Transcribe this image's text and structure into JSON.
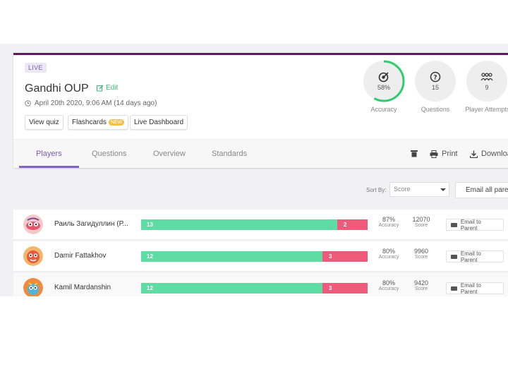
{
  "quiz": {
    "status": "LIVE",
    "title": "Gandhi OUP",
    "edit_label": "Edit",
    "date": "April 20th 2020, 9:06 AM (14 days ago)"
  },
  "actions": {
    "view_quiz": "View quiz",
    "flashcards": "Flashcards",
    "new_badge": "NEW",
    "live_dashboard": "Live Dashboard"
  },
  "stats": [
    {
      "value": "58%",
      "label": "Accuracy",
      "percent": 58
    },
    {
      "value": "15",
      "label": "Questions"
    },
    {
      "value": "9",
      "label": "Player Attempts"
    }
  ],
  "tabs": [
    "Players",
    "Questions",
    "Overview",
    "Standards"
  ],
  "toolbar": {
    "print": "Print",
    "download": "Download"
  },
  "sort": {
    "label": "Sort By:",
    "value": "Score"
  },
  "email_all": "Email all parents",
  "metric_labels": {
    "accuracy": "Accuracy",
    "score": "Score"
  },
  "email_parent": "Email to Parent",
  "players": [
    {
      "name": "Раиль Загидуллин (Р...",
      "correct": 13,
      "incorrect": 2,
      "accuracy": "87%",
      "score": "12070"
    },
    {
      "name": "Damir Fattakhov",
      "correct": 12,
      "incorrect": 3,
      "accuracy": "80%",
      "score": "9960"
    },
    {
      "name": "Kamil Mardanshin",
      "correct": 12,
      "incorrect": 3,
      "accuracy": "80%",
      "score": "9420"
    }
  ],
  "colors": {
    "accent": "#8462c4",
    "header_border": "#5b1a5b",
    "correct": "#5fdba4",
    "incorrect": "#ee5a7a",
    "ring": "#2ecc71"
  }
}
